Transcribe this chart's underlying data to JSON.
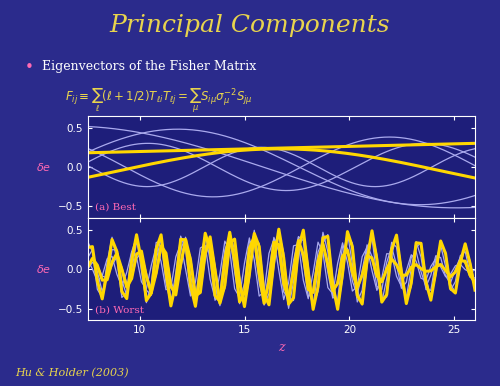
{
  "title": "Principal Components",
  "title_color": "#E8D44D",
  "title_fontsize": 18,
  "bg_color": "#2B2B8C",
  "plot_bg_color": "#1E1E7A",
  "bullet_text": "Eigenvectors of the Fisher Matrix",
  "bullet_color": "#FFFFFF",
  "bullet_dot_color": "#FF69B4",
  "formula_color": "#E8D44D",
  "label_color": "#FF69B4",
  "label_fontsize": 8,
  "axis_color": "#FFFFFF",
  "tick_color": "#FFFFFF",
  "xlabel": "z",
  "xlabel_color": "#FF69B4",
  "ylabel": "$\\delta e$",
  "xmin": 7.5,
  "xmax": 26,
  "ymin": -0.65,
  "ymax": 0.65,
  "yticks": [
    -0.5,
    0,
    0.5
  ],
  "xticks": [
    10,
    15,
    20,
    25
  ],
  "annotation_a": "(a) Best",
  "annotation_b": "(b) Worst",
  "annotation_color": "#FF69B4",
  "white_line_color": "#AAAAEE",
  "yellow_line_color": "#FFD700",
  "white_lw": 0.9,
  "yellow_lw": 2.2,
  "source_text": "Hu & Holder (2003)",
  "source_color": "#E8D44D",
  "source_fontsize": 8
}
